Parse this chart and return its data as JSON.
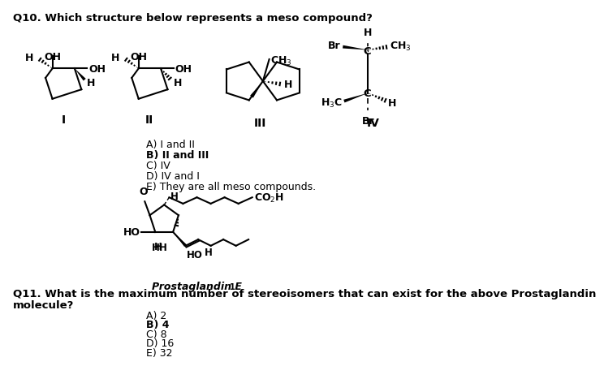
{
  "title": "Q10. Which structure below represents a meso compound?",
  "q11_text_line1": "Q11. What is the maximum number of stereoisomers that can exist for the above Prostaglandin",
  "q11_text_line2": "molecule?",
  "q10_options": [
    "A) I and II",
    "B) II and III",
    "C) IV",
    "D) IV and I",
    "E) They are all meso compounds."
  ],
  "q11_options": [
    "A) 2",
    "B) 4",
    "C) 8",
    "D) 16",
    "E) 32"
  ],
  "background_color": "#ffffff",
  "text_color": "#000000",
  "bold_answer_q10": "B)",
  "bold_answer_q11": "B)"
}
